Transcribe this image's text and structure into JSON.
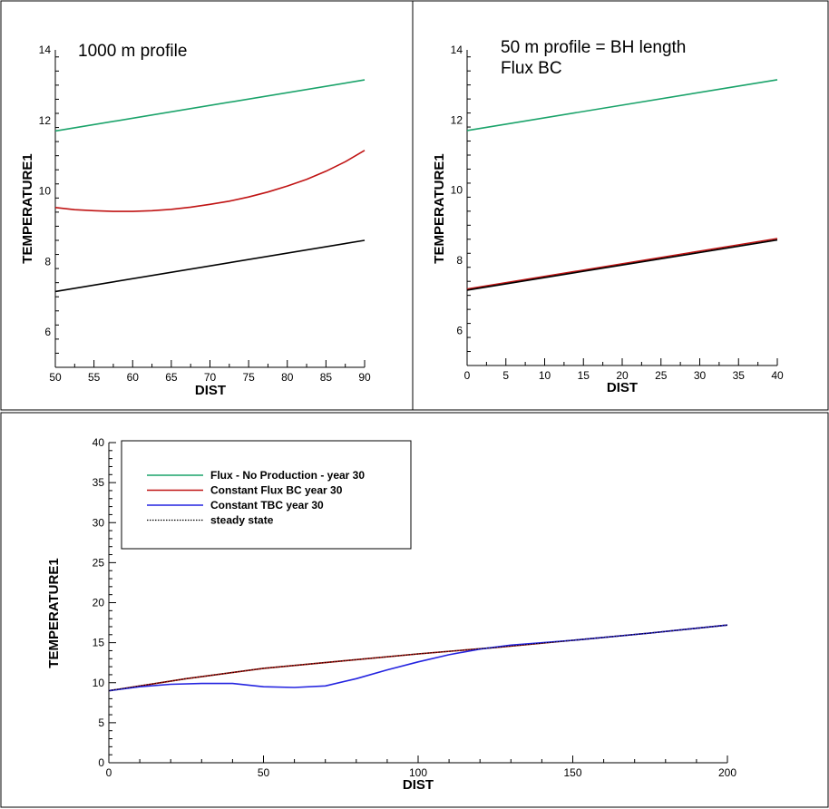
{
  "chart_data": [
    {
      "type": "line",
      "title": "1000 m profile",
      "xlabel": "DIST",
      "ylabel": "TEMPERATURE1",
      "xlim": [
        50,
        90
      ],
      "ylim": [
        5,
        14
      ],
      "xticks": [
        "50",
        "55",
        "60",
        "65",
        "70",
        "75",
        "80",
        "85",
        "90"
      ],
      "yticks": [
        "6",
        "8",
        "10",
        "12",
        "14"
      ],
      "series": [
        {
          "color": "#1aa36a",
          "x": [
            50,
            90
          ],
          "y": [
            11.7,
            13.15
          ]
        },
        {
          "color": "#c01414",
          "x": [
            50,
            52.5,
            55,
            57.5,
            60,
            62.5,
            65,
            67.5,
            70,
            72.5,
            75,
            77.5,
            80,
            82.5,
            85,
            87.5,
            90
          ],
          "y": [
            9.53,
            9.47,
            9.44,
            9.42,
            9.42,
            9.44,
            9.48,
            9.54,
            9.62,
            9.71,
            9.83,
            9.97,
            10.14,
            10.33,
            10.56,
            10.83,
            11.15
          ]
        },
        {
          "color": "#000000",
          "x": [
            50,
            90
          ],
          "y": [
            7.15,
            8.6
          ]
        }
      ]
    },
    {
      "type": "line",
      "title": "50 m profile = BH length",
      "subtitle": "Flux BC",
      "xlabel": "DIST",
      "ylabel": "TEMPERATURE1",
      "xlim": [
        0,
        40
      ],
      "ylim": [
        5,
        14
      ],
      "xticks": [
        "0",
        "5",
        "10",
        "15",
        "20",
        "25",
        "30",
        "35",
        "40"
      ],
      "yticks": [
        "6",
        "8",
        "10",
        "12",
        "14"
      ],
      "series": [
        {
          "color": "#1aa36a",
          "x": [
            0,
            40
          ],
          "y": [
            11.7,
            13.15
          ]
        },
        {
          "color": "#c01414",
          "x": [
            0,
            40
          ],
          "y": [
            7.18,
            8.62
          ]
        },
        {
          "color": "#000000",
          "x": [
            0,
            40
          ],
          "y": [
            7.15,
            8.58
          ]
        }
      ]
    },
    {
      "type": "line",
      "xlabel": "DIST",
      "ylabel": "TEMPERATURE1",
      "xlim": [
        0,
        200
      ],
      "ylim": [
        0,
        40
      ],
      "xticks": [
        "0",
        "50",
        "100",
        "150",
        "200"
      ],
      "yticks": [
        "0",
        "5",
        "10",
        "15",
        "20",
        "25",
        "30",
        "35",
        "40"
      ],
      "legend_position": "top-left",
      "series": [
        {
          "name": "Flux - No Production - year 30",
          "color": "#1aa36a",
          "x": [
            0,
            25,
            50,
            75,
            100,
            125,
            150,
            175,
            200
          ],
          "y": [
            9.0,
            10.5,
            11.8,
            12.7,
            13.6,
            14.4,
            15.3,
            16.2,
            17.2
          ]
        },
        {
          "name": "Constant Flux BC year 30",
          "color": "#c01414",
          "x": [
            0,
            25,
            50,
            75,
            100,
            125,
            150,
            175,
            200
          ],
          "y": [
            9.0,
            10.5,
            11.8,
            12.7,
            13.6,
            14.4,
            15.3,
            16.2,
            17.2
          ]
        },
        {
          "name": "Constant TBC year 30",
          "color": "#2424e0",
          "x": [
            0,
            10,
            20,
            30,
            40,
            50,
            60,
            70,
            80,
            90,
            100,
            110,
            120,
            130,
            150,
            175,
            200
          ],
          "y": [
            9.0,
            9.5,
            9.8,
            9.9,
            9.9,
            9.5,
            9.4,
            9.6,
            10.5,
            11.6,
            12.6,
            13.5,
            14.2,
            14.7,
            15.3,
            16.2,
            17.2
          ]
        },
        {
          "name": "steady state",
          "color": "#000000",
          "dash": "dotted",
          "x": [
            0,
            25,
            50,
            75,
            100,
            125,
            150,
            175,
            200
          ],
          "y": [
            9.0,
            10.5,
            11.8,
            12.7,
            13.6,
            14.4,
            15.3,
            16.2,
            17.2
          ]
        }
      ]
    }
  ]
}
